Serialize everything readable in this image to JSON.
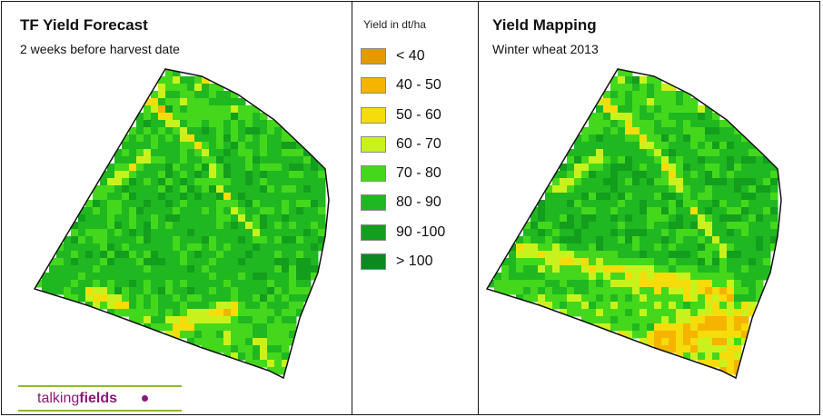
{
  "left_panel": {
    "title": "TF Yield Forecast",
    "subtitle": "2 weeks before harvest date"
  },
  "right_panel": {
    "title": "Yield Mapping",
    "subtitle": "Winter wheat 2013"
  },
  "legend": {
    "title": "Yield in dt/ha",
    "items": [
      {
        "label": "< 40",
        "color": "#e39b00"
      },
      {
        "label": "40 - 50",
        "color": "#f4b400"
      },
      {
        "label": "50 - 60",
        "color": "#f6dc0a"
      },
      {
        "label": "60 - 70",
        "color": "#c9f21c"
      },
      {
        "label": "70 - 80",
        "color": "#44d81c"
      },
      {
        "label": "80 - 90",
        "color": "#20b820"
      },
      {
        "label": "90 -100",
        "color": "#139e1d"
      },
      {
        "label": "> 100",
        "color": "#0c8a20"
      }
    ]
  },
  "logo": {
    "word_part_1": "talking",
    "word_part_2": "fields",
    "line_color": "#8dbb2a",
    "text_color": "#8a1a7a"
  }
}
